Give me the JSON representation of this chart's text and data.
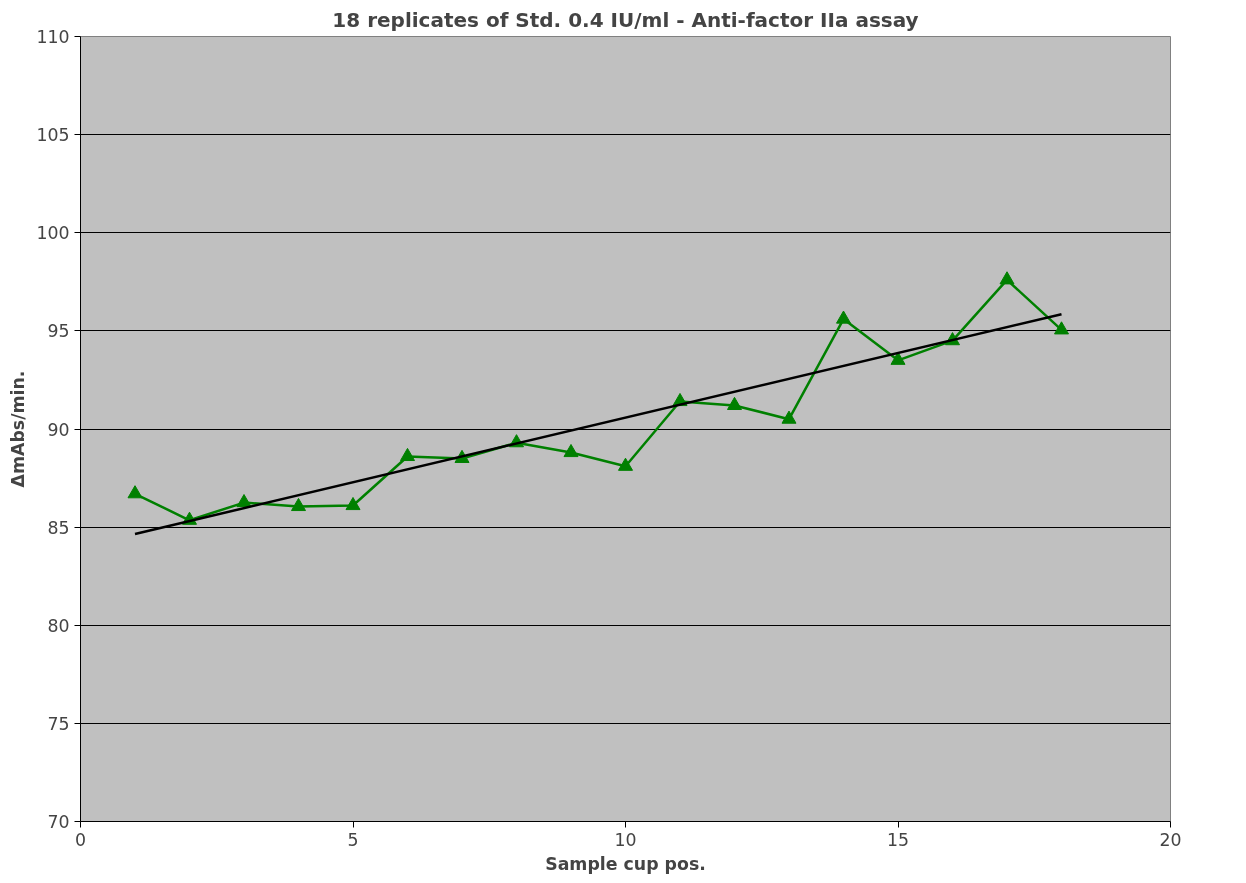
{
  "chart_data": {
    "type": "line",
    "title": "18 replicates of Std. 0.4 IU/ml - Anti-factor IIa assay",
    "xlabel": "Sample cup pos.",
    "ylabel": "ΔmAbs/min.",
    "x": [
      1,
      2,
      3,
      4,
      5,
      6,
      7,
      8,
      9,
      10,
      11,
      12,
      13,
      14,
      15,
      16,
      17,
      18
    ],
    "series": [
      {
        "color": "#008000",
        "values": [
          86.7,
          85.35,
          86.25,
          86.05,
          86.1,
          88.6,
          88.5,
          89.3,
          88.8,
          88.1,
          91.4,
          91.2,
          90.5,
          95.6,
          93.5,
          94.5,
          97.6,
          95.05
        ]
      },
      {
        "type": "line",
        "color": "#000000",
        "marker": "none",
        "x": [
          1,
          18
        ],
        "values": [
          84.65,
          95.85
        ]
      }
    ],
    "xlim": [
      0,
      20
    ],
    "xticks": [
      0,
      5,
      10,
      15,
      20
    ],
    "ylim": [
      70,
      110
    ],
    "yticks": [
      70,
      75,
      80,
      85,
      90,
      95,
      100,
      105,
      110
    ],
    "grid": "y",
    "marker": "triangle",
    "line_style": "solid"
  }
}
